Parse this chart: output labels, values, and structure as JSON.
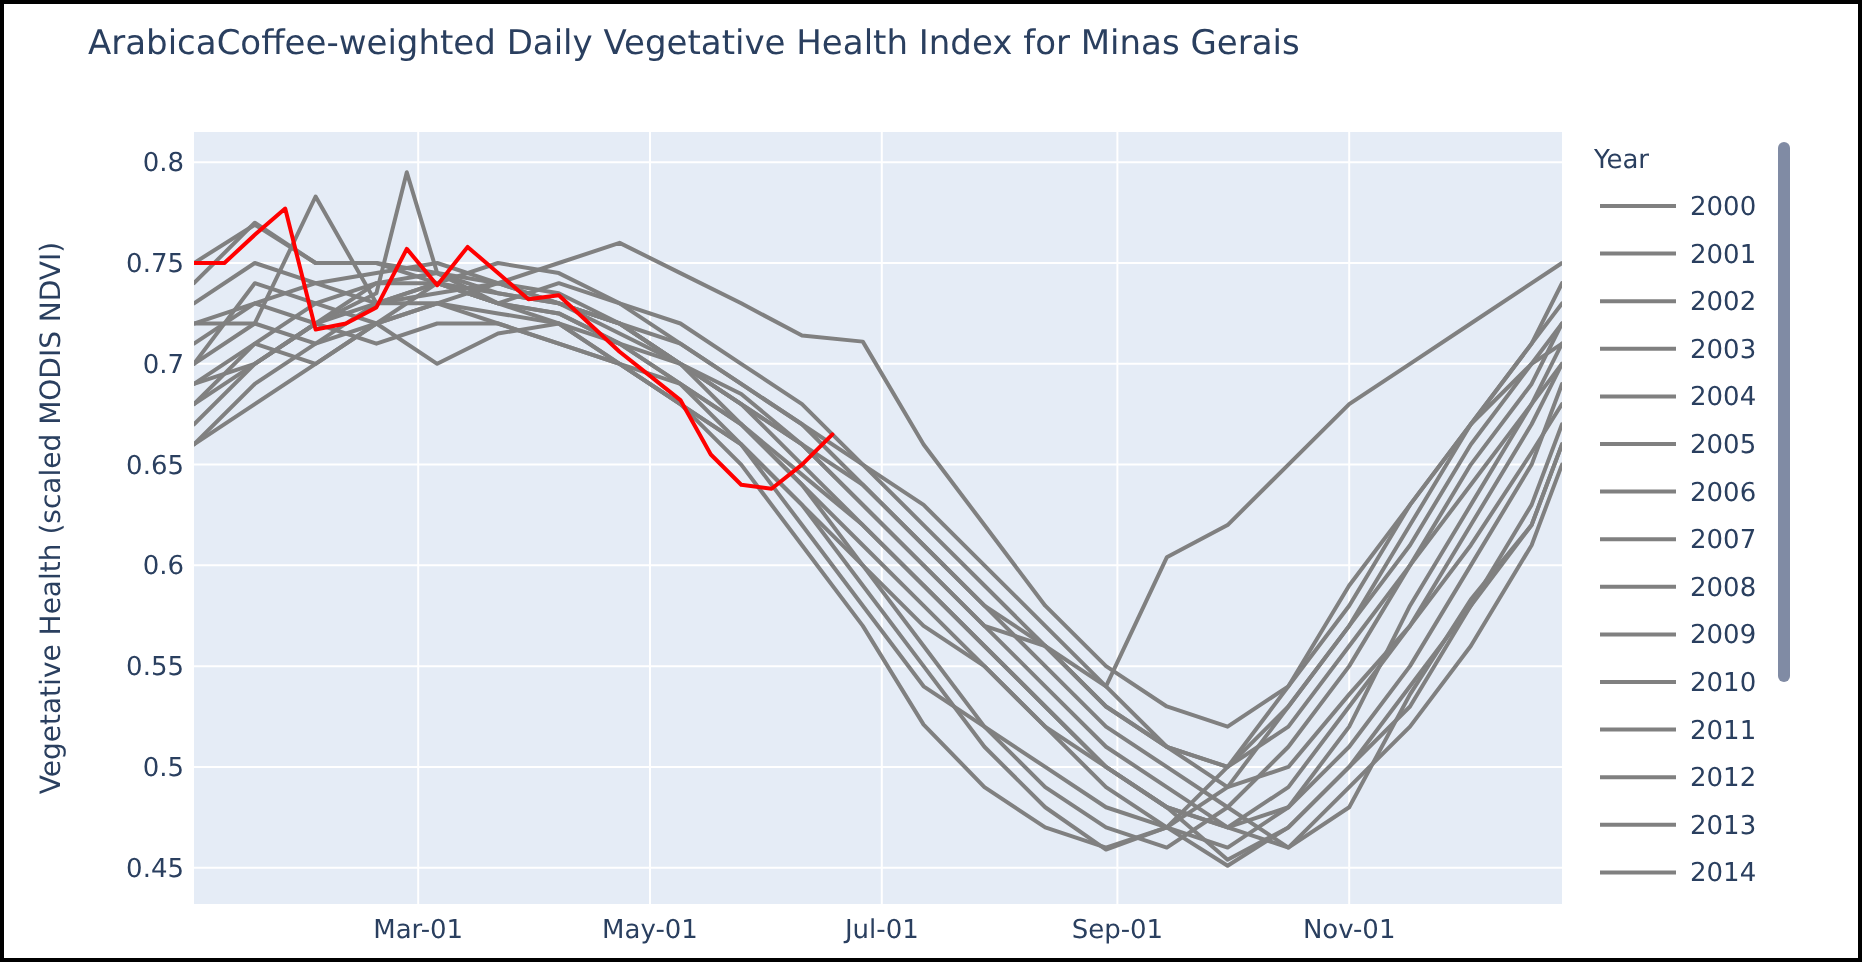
{
  "chart_data": {
    "type": "line",
    "title": "ArabicaCoffee-weighted Daily Vegetative Health Index for Minas Gerais",
    "ylabel": "Vegetative Health (scaled MODIS NDVI)",
    "legend_title": "Year",
    "x": [
      "--01-01",
      "--01-17",
      "--02-02",
      "--02-18",
      "--03-06",
      "--03-22",
      "--04-07",
      "--04-23",
      "--05-09",
      "--05-25",
      "--06-10",
      "--06-26",
      "--07-12",
      "--07-28",
      "--08-13",
      "--08-29",
      "--09-14",
      "--09-30",
      "--10-16",
      "--11-01",
      "--11-17",
      "--12-03",
      "--12-19",
      "--12-27"
    ],
    "xlim": [
      "--01-01",
      "--12-27"
    ],
    "xticks": [
      {
        "value": "--03-01",
        "label": "Mar-01"
      },
      {
        "value": "--05-01",
        "label": "May-01"
      },
      {
        "value": "--07-01",
        "label": "Jul-01"
      },
      {
        "value": "--09-01",
        "label": "Sep-01"
      },
      {
        "value": "--11-01",
        "label": "Nov-01"
      }
    ],
    "ylim": [
      0.432,
      0.815
    ],
    "yticks": [
      0.45,
      0.5,
      0.55,
      0.6,
      0.65,
      0.7,
      0.75,
      0.8
    ],
    "grid": true,
    "legend": "right",
    "series": [
      {
        "name": "2000",
        "color": "#808080",
        "values": [
          0.74,
          0.77,
          0.75,
          0.75,
          0.745,
          0.74,
          0.75,
          0.76,
          0.745,
          0.73,
          0.714,
          0.711,
          0.66,
          0.62,
          0.58,
          0.55,
          0.53,
          0.52,
          0.54,
          0.58,
          0.63,
          0.67,
          0.71,
          0.73
        ]
      },
      {
        "name": "2001",
        "color": "#808080",
        "values": [
          0.7,
          0.72,
          0.783,
          0.73,
          0.74,
          0.735,
          0.73,
          0.72,
          0.7,
          0.67,
          0.64,
          0.6,
          0.56,
          0.52,
          0.49,
          0.47,
          0.46,
          0.48,
          0.51,
          0.55,
          0.6,
          0.65,
          0.69,
          0.72
        ]
      },
      {
        "name": "2002",
        "color": "#808080",
        "x": [
          "--01-01",
          "--01-17",
          "--02-02",
          "--02-18",
          "--02-26",
          "--03-06",
          "--03-22",
          "--04-07",
          "--04-23",
          "--05-09",
          "--05-25",
          "--06-10",
          "--06-26",
          "--07-12",
          "--07-28",
          "--08-13",
          "--08-29",
          "--09-14",
          "--09-30",
          "--10-16",
          "--11-01",
          "--11-17",
          "--12-03",
          "--12-19",
          "--12-27"
        ],
        "values": [
          0.68,
          0.7,
          0.72,
          0.735,
          0.795,
          0.745,
          0.73,
          0.725,
          0.71,
          0.69,
          0.66,
          0.62,
          0.58,
          0.54,
          0.52,
          0.5,
          0.48,
          0.47,
          0.451,
          0.47,
          0.5,
          0.53,
          0.58,
          0.62,
          0.66
        ]
      },
      {
        "name": "2003",
        "color": "#808080",
        "values": [
          0.72,
          0.73,
          0.74,
          0.745,
          0.75,
          0.74,
          0.73,
          0.72,
          0.7,
          0.68,
          0.65,
          0.62,
          0.59,
          0.56,
          0.53,
          0.5,
          0.48,
          0.47,
          0.49,
          0.53,
          0.57,
          0.62,
          0.67,
          0.7
        ]
      },
      {
        "name": "2004",
        "color": "#808080",
        "values": [
          0.66,
          0.69,
          0.71,
          0.72,
          0.73,
          0.725,
          0.72,
          0.7,
          0.68,
          0.65,
          0.61,
          0.57,
          0.521,
          0.49,
          0.47,
          0.46,
          0.47,
          0.49,
          0.53,
          0.57,
          0.61,
          0.66,
          0.7,
          0.72
        ]
      },
      {
        "name": "2005",
        "color": "#808080",
        "values": [
          0.69,
          0.71,
          0.7,
          0.72,
          0.74,
          0.73,
          0.74,
          0.73,
          0.71,
          0.69,
          0.67,
          0.64,
          0.61,
          0.58,
          0.55,
          0.52,
          0.5,
          0.48,
          0.46,
          0.48,
          0.536,
          0.583,
          0.62,
          0.66
        ]
      },
      {
        "name": "2006",
        "color": "#808080",
        "values": [
          0.71,
          0.73,
          0.72,
          0.74,
          0.745,
          0.735,
          0.73,
          0.715,
          0.7,
          0.68,
          0.66,
          0.63,
          0.6,
          0.57,
          0.56,
          0.54,
          0.604,
          0.62,
          0.65,
          0.68,
          0.7,
          0.72,
          0.74,
          0.75
        ]
      },
      {
        "name": "2007",
        "color": "#808080",
        "values": [
          0.67,
          0.7,
          0.72,
          0.71,
          0.72,
          0.72,
          0.71,
          0.7,
          0.69,
          0.67,
          0.64,
          0.61,
          0.58,
          0.55,
          0.52,
          0.49,
          0.47,
          0.46,
          0.48,
          0.51,
          0.55,
          0.6,
          0.65,
          0.69
        ]
      },
      {
        "name": "2008",
        "color": "#808080",
        "values": [
          0.73,
          0.75,
          0.74,
          0.73,
          0.73,
          0.74,
          0.735,
          0.72,
          0.71,
          0.69,
          0.67,
          0.65,
          0.63,
          0.6,
          0.57,
          0.54,
          0.51,
          0.5,
          0.53,
          0.57,
          0.62,
          0.67,
          0.71,
          0.74
        ]
      },
      {
        "name": "2009",
        "color": "#808080",
        "values": [
          0.7,
          0.74,
          0.73,
          0.72,
          0.7,
          0.715,
          0.72,
          0.7,
          0.68,
          0.66,
          0.63,
          0.59,
          0.55,
          0.51,
          0.48,
          0.459,
          0.47,
          0.5,
          0.54,
          0.59,
          0.63,
          0.67,
          0.7,
          0.71
        ]
      },
      {
        "name": "2010",
        "color": "#808080",
        "values": [
          0.68,
          0.71,
          0.73,
          0.74,
          0.74,
          0.73,
          0.72,
          0.71,
          0.69,
          0.67,
          0.645,
          0.62,
          0.59,
          0.56,
          0.53,
          0.5,
          0.48,
          0.454,
          0.47,
          0.5,
          0.54,
          0.58,
          0.63,
          0.67
        ]
      },
      {
        "name": "2011",
        "color": "#808080",
        "values": [
          0.72,
          0.72,
          0.71,
          0.73,
          0.735,
          0.74,
          0.73,
          0.72,
          0.7,
          0.685,
          0.66,
          0.64,
          0.61,
          0.58,
          0.56,
          0.53,
          0.51,
          0.49,
          0.5,
          0.536,
          0.57,
          0.61,
          0.656,
          0.68
        ]
      },
      {
        "name": "2012",
        "color": "#808080",
        "values": [
          0.75,
          0.769,
          0.75,
          0.75,
          0.74,
          0.73,
          0.725,
          0.71,
          0.7,
          0.68,
          0.66,
          0.63,
          0.6,
          0.57,
          0.54,
          0.51,
          0.49,
          0.47,
          0.48,
          0.52,
          0.58,
          0.63,
          0.68,
          0.71
        ]
      },
      {
        "name": "2013",
        "color": "#808080",
        "values": [
          0.69,
          0.7,
          0.72,
          0.73,
          0.74,
          0.75,
          0.745,
          0.73,
          0.72,
          0.7,
          0.68,
          0.65,
          0.62,
          0.59,
          0.56,
          0.53,
          0.51,
          0.5,
          0.52,
          0.56,
          0.6,
          0.64,
          0.68,
          0.7
        ]
      },
      {
        "name": "2014",
        "color": "#808080",
        "values": [
          0.66,
          0.68,
          0.7,
          0.72,
          0.73,
          0.72,
          0.71,
          0.7,
          0.68,
          0.66,
          0.63,
          0.6,
          0.57,
          0.55,
          0.52,
          0.5,
          0.48,
          0.47,
          0.46,
          0.49,
          0.52,
          0.56,
          0.61,
          0.65
        ]
      },
      {
        "color": "#ff0000",
        "x": [
          "--01-01",
          "--01-09",
          "--01-17",
          "--01-25",
          "--02-02",
          "--02-10",
          "--02-18",
          "--02-26",
          "--03-06",
          "--03-14",
          "--03-22",
          "--03-30",
          "--04-07",
          "--04-15",
          "--04-23",
          "--05-01",
          "--05-09",
          "--05-17",
          "--05-25",
          "--06-02",
          "--06-10",
          "--06-18"
        ],
        "values": [
          0.75,
          0.75,
          0.764,
          0.777,
          0.717,
          0.72,
          0.728,
          0.757,
          0.739,
          0.758,
          0.745,
          0.732,
          0.734,
          0.72,
          0.706,
          0.694,
          0.682,
          0.655,
          0.64,
          0.638,
          0.65,
          0.665
        ]
      }
    ]
  }
}
